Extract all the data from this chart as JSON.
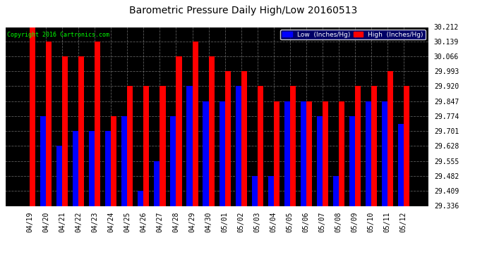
{
  "title": "Barometric Pressure Daily High/Low 20160513",
  "copyright": "Copyright 2016 Cartronics.com",
  "legend_low_label": "Low  (Inches/Hg)",
  "legend_high_label": "High  (Inches/Hg)",
  "dates": [
    "04/19",
    "04/20",
    "04/21",
    "04/22",
    "04/23",
    "04/24",
    "04/25",
    "04/26",
    "04/27",
    "04/28",
    "04/29",
    "04/30",
    "05/01",
    "05/02",
    "05/03",
    "05/04",
    "05/05",
    "05/06",
    "05/07",
    "05/08",
    "05/09",
    "05/10",
    "05/11",
    "05/12"
  ],
  "low_values": [
    29.336,
    29.774,
    29.628,
    29.701,
    29.701,
    29.701,
    29.774,
    29.409,
    29.555,
    29.774,
    29.92,
    29.847,
    29.847,
    29.92,
    29.482,
    29.482,
    29.847,
    29.847,
    29.774,
    29.482,
    29.774,
    29.847,
    29.847,
    29.737
  ],
  "high_values": [
    30.212,
    30.139,
    30.066,
    30.066,
    30.139,
    29.774,
    29.92,
    29.92,
    29.92,
    30.066,
    30.139,
    30.066,
    29.993,
    29.993,
    29.92,
    29.847,
    29.92,
    29.847,
    29.847,
    29.847,
    29.92,
    29.92,
    29.993,
    29.92
  ],
  "ymin": 29.336,
  "ymax": 30.212,
  "yticks": [
    29.336,
    29.409,
    29.482,
    29.555,
    29.628,
    29.701,
    29.774,
    29.847,
    29.92,
    29.993,
    30.066,
    30.139,
    30.212
  ],
  "low_color": "#0000ff",
  "high_color": "#ff0000",
  "bg_color": "#000000",
  "plot_bg_color": "#000000",
  "grid_color": "#808080",
  "title_color": "#000000",
  "fig_bg_color": "#ffffff",
  "copyright_color": "#00ff00",
  "legend_low_bg": "#0000ff",
  "legend_high_bg": "#ff0000",
  "bar_width": 0.35,
  "title_fontsize": 10,
  "tick_fontsize": 7,
  "copyright_fontsize": 6
}
